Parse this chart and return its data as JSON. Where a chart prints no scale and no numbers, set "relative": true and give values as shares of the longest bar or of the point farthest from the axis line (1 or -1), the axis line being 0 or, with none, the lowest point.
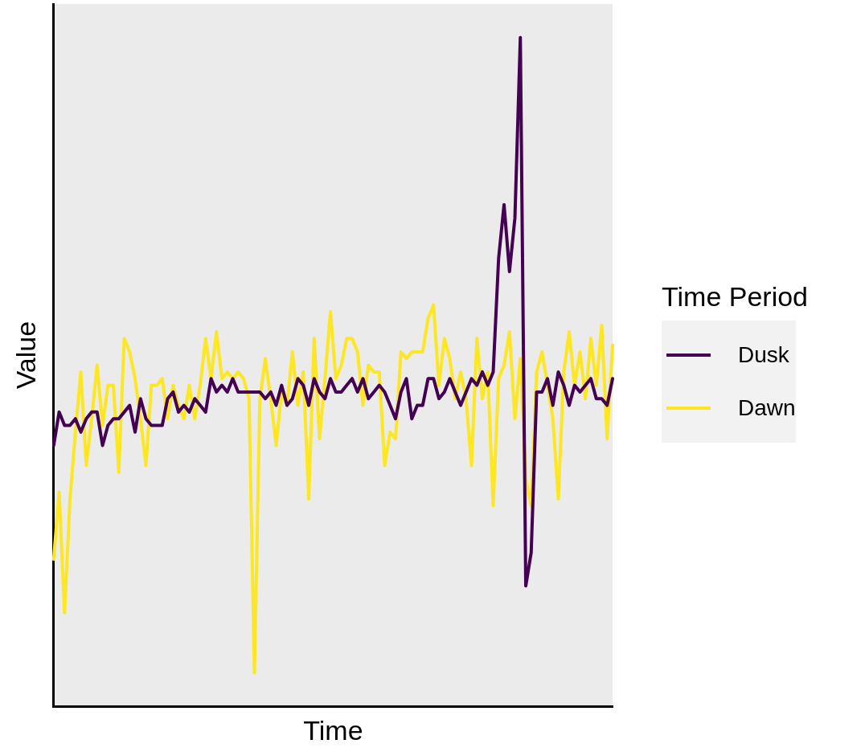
{
  "chart_data": {
    "type": "line",
    "xlabel": "Time",
    "ylabel": "Value",
    "legend_title": "Time Period",
    "legend": "right",
    "grid": false,
    "relative": true,
    "categories": [
      null,
      null,
      null,
      null,
      null,
      null,
      null,
      null,
      null,
      null,
      null,
      null,
      null,
      null,
      null,
      null,
      null,
      null,
      null,
      null,
      null,
      null,
      null,
      null,
      null,
      null,
      null,
      null,
      null,
      null,
      null,
      null,
      null,
      null,
      null,
      null,
      null,
      null,
      null,
      null,
      null,
      null,
      null,
      null,
      null,
      null,
      null,
      null,
      null,
      null,
      null,
      null,
      null,
      null,
      null,
      null,
      null,
      null,
      null,
      null,
      null,
      null,
      null,
      null,
      null,
      null,
      null,
      null,
      null,
      null,
      null,
      null,
      null,
      null,
      null,
      null,
      null,
      null,
      null,
      null,
      null,
      null,
      null,
      null,
      null,
      null,
      null,
      null,
      null,
      null,
      null,
      null,
      null,
      null,
      null,
      null,
      null,
      null,
      null,
      null,
      null,
      null,
      null,
      null
    ],
    "series": [
      {
        "name": "Dusk",
        "color": "#440154",
        "values": [
          0.39,
          0.44,
          0.42,
          0.42,
          0.43,
          0.41,
          0.43,
          0.44,
          0.44,
          0.39,
          0.42,
          0.43,
          0.43,
          0.44,
          0.45,
          0.41,
          0.46,
          0.43,
          0.42,
          0.42,
          0.42,
          0.46,
          0.47,
          0.44,
          0.45,
          0.44,
          0.46,
          0.45,
          0.44,
          0.49,
          0.47,
          0.48,
          0.47,
          0.49,
          0.47,
          0.47,
          0.47,
          0.47,
          0.47,
          0.46,
          0.47,
          0.45,
          0.48,
          0.45,
          0.46,
          0.49,
          0.48,
          0.45,
          0.49,
          0.47,
          0.46,
          0.49,
          0.47,
          0.47,
          0.48,
          0.49,
          0.47,
          0.49,
          0.46,
          0.47,
          0.48,
          0.47,
          0.45,
          0.43,
          0.47,
          0.49,
          0.43,
          0.45,
          0.45,
          0.49,
          0.49,
          0.46,
          0.47,
          0.49,
          0.47,
          0.45,
          0.47,
          0.49,
          0.48,
          0.5,
          0.48,
          0.5,
          0.67,
          0.75,
          0.65,
          0.73,
          1,
          0.18,
          0.23,
          0.47,
          0.47,
          0.49,
          0.45,
          0.5,
          0.48,
          0.45,
          0.48,
          0.47,
          0.48,
          0.49,
          0.46,
          0.46,
          0.45,
          0.49
        ]
      },
      {
        "name": "Dawn",
        "color": "#fde725",
        "values": [
          0.22,
          0.32,
          0.14,
          0.31,
          0.41,
          0.5,
          0.36,
          0.43,
          0.51,
          0.42,
          0.48,
          0.48,
          0.35,
          0.55,
          0.53,
          0.49,
          0.43,
          0.36,
          0.48,
          0.48,
          0.49,
          0.43,
          0.48,
          0.45,
          0.43,
          0.48,
          0.43,
          0.48,
          0.55,
          0.49,
          0.56,
          0.49,
          0.5,
          0.49,
          0.5,
          0.49,
          0.46,
          0.05,
          0.46,
          0.52,
          0.46,
          0.39,
          0.47,
          0.45,
          0.53,
          0.45,
          0.5,
          0.31,
          0.55,
          0.4,
          0.49,
          0.59,
          0.49,
          0.51,
          0.55,
          0.55,
          0.53,
          0.45,
          0.51,
          0.5,
          0.5,
          0.36,
          0.41,
          0.4,
          0.53,
          0.52,
          0.53,
          0.53,
          0.53,
          0.58,
          0.6,
          0.48,
          0.55,
          0.52,
          0.46,
          0.5,
          0.46,
          0.36,
          0.55,
          0.46,
          0.5,
          0.3,
          0.49,
          0.51,
          0.56,
          0.43,
          0.52,
          0.34,
          0.3,
          0.5,
          0.53,
          0.48,
          0.43,
          0.31,
          0.5,
          0.56,
          0.48,
          0.53,
          0.46,
          0.55,
          0.48,
          0.57,
          0.4,
          0.54
        ]
      }
    ]
  }
}
